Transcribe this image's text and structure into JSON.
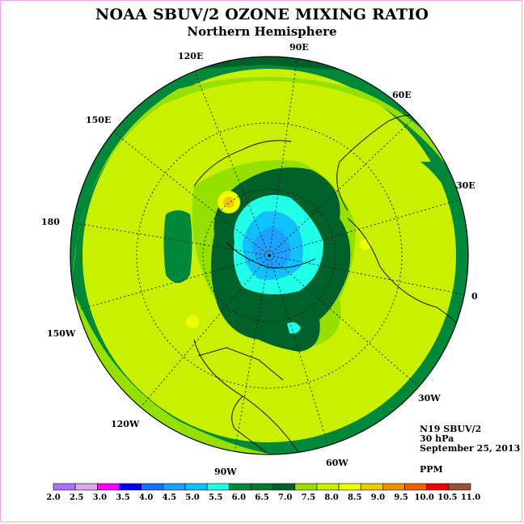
{
  "title": "NOAA SBUV/2 OZONE MIXING RATIO",
  "subtitle": "Northern Hemisphere",
  "longitude_labels": [
    "90E",
    "60E",
    "30E",
    "0",
    "30W",
    "60W",
    "90W",
    "120W",
    "150W",
    "180",
    "150E",
    "120E"
  ],
  "info": {
    "instrument": "N19 SBUV/2",
    "level": "30 hPa",
    "date": "September 25, 2013"
  },
  "unit": "PPM",
  "colorbar": {
    "ticks": [
      "2.0",
      "2.5",
      "3.0",
      "3.5",
      "4.0",
      "4.5",
      "5.0",
      "5.5",
      "6.0",
      "6.5",
      "7.0",
      "7.5",
      "8.0",
      "8.5",
      "9.0",
      "9.5",
      "10.0",
      "10.5",
      "11.0"
    ],
    "colors": [
      "#b070ff",
      "#e0a8f0",
      "#ff00ff",
      "#0000ff",
      "#1e6fff",
      "#1ea0ff",
      "#10c0ff",
      "#20ffe8",
      "#00883a",
      "#007a30",
      "#00622a",
      "#96e000",
      "#c8f000",
      "#f0ff00",
      "#f0c800",
      "#f09000",
      "#f06000",
      "#f00000",
      "#9a5030"
    ]
  }
}
